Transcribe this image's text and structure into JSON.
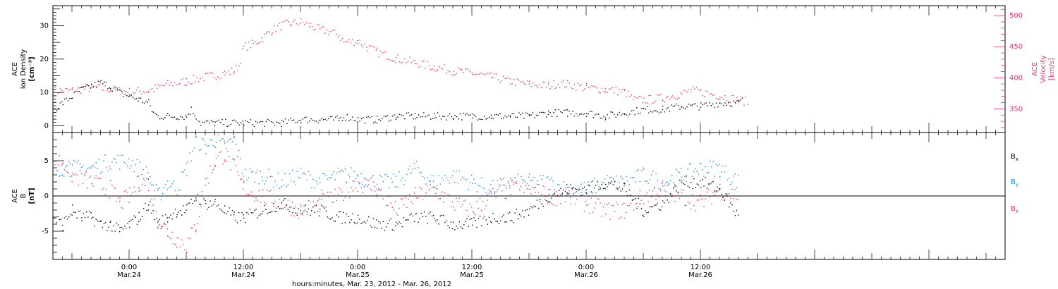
{
  "figure": {
    "xlabel": "hours:minutes, Mar. 23, 2012 - Mar. 26, 2012",
    "xrange_hours": [
      -8,
      92
    ],
    "ticks": [
      {
        "h": 0,
        "time": "0:00",
        "date": "Mar.24"
      },
      {
        "h": 12,
        "time": "12:00",
        "date": "Mar.24"
      },
      {
        "h": 24,
        "time": "0:00",
        "date": "Mar.25"
      },
      {
        "h": 36,
        "time": "12:00",
        "date": "Mar.25"
      },
      {
        "h": 48,
        "time": "0:00",
        "date": "Mar.26"
      },
      {
        "h": 60,
        "time": "12:00",
        "date": "Mar.26"
      }
    ]
  },
  "chart_data": [
    {
      "type": "scatter",
      "panel": "top",
      "ylabel": {
        "line1": "ACE",
        "line2": "Ion Density",
        "line3": "[cm⁻³]"
      },
      "ylabel_right": {
        "line1": "ACE",
        "line2": "Velocity",
        "line3": "[km/s]"
      },
      "ylim": [
        -2,
        36
      ],
      "ylim_right": [
        312,
        516
      ],
      "yticks": [
        0,
        10,
        20,
        30
      ],
      "yticks_right": [
        350,
        400,
        450,
        500
      ],
      "series": [
        {
          "key": "density",
          "axis": "left",
          "color": "#000000",
          "points": [
            [
              -8,
              5
            ],
            [
              -7,
              7
            ],
            [
              -6,
              9
            ],
            [
              -5,
              11
            ],
            [
              -4,
              12
            ],
            [
              -3,
              13
            ],
            [
              -2,
              12
            ],
            [
              -1,
              10
            ],
            [
              0,
              9
            ],
            [
              1,
              8
            ],
            [
              2,
              7
            ],
            [
              2.5,
              4
            ],
            [
              3,
              3
            ],
            [
              4,
              3
            ],
            [
              5,
              3
            ],
            [
              6,
              3
            ],
            [
              6.5,
              5
            ],
            [
              7,
              3
            ],
            [
              7.5,
              1
            ],
            [
              9,
              1
            ],
            [
              12,
              1
            ],
            [
              16,
              1
            ],
            [
              18,
              2
            ],
            [
              20,
              2
            ],
            [
              22,
              2
            ],
            [
              22.5,
              3
            ],
            [
              24,
              2
            ],
            [
              26,
              2
            ],
            [
              28,
              3
            ],
            [
              30,
              3
            ],
            [
              32,
              3
            ],
            [
              34,
              3
            ],
            [
              36,
              3
            ],
            [
              38,
              3
            ],
            [
              40,
              3
            ],
            [
              42,
              3
            ],
            [
              44,
              4
            ],
            [
              46,
              4
            ],
            [
              48,
              4
            ],
            [
              50,
              3
            ],
            [
              52,
              4
            ],
            [
              54,
              5
            ],
            [
              56,
              5
            ],
            [
              58,
              6
            ],
            [
              60,
              6
            ],
            [
              62,
              7
            ],
            [
              64,
              7
            ],
            [
              64.5,
              8
            ]
          ]
        },
        {
          "key": "velocity",
          "axis": "right",
          "color": "#e8336c",
          "points": [
            [
              -8,
              380
            ],
            [
              -6,
              380
            ],
            [
              -4,
              385
            ],
            [
              -2,
              382
            ],
            [
              0,
              378
            ],
            [
              2,
              380
            ],
            [
              3,
              385
            ],
            [
              4,
              390
            ],
            [
              6,
              395
            ],
            [
              8,
              402
            ],
            [
              10,
              408
            ],
            [
              11,
              412
            ],
            [
              11.5,
              420
            ],
            [
              12,
              450
            ],
            [
              13,
              455
            ],
            [
              14,
              465
            ],
            [
              15,
              478
            ],
            [
              16,
              485
            ],
            [
              17,
              488
            ],
            [
              18,
              490
            ],
            [
              19,
              485
            ],
            [
              20,
              478
            ],
            [
              21,
              475
            ],
            [
              22,
              470
            ],
            [
              22.5,
              458
            ],
            [
              24,
              460
            ],
            [
              25,
              450
            ],
            [
              26,
              442
            ],
            [
              28,
              432
            ],
            [
              30,
              425
            ],
            [
              32,
              418
            ],
            [
              34,
              412
            ],
            [
              36,
              408
            ],
            [
              38,
              402
            ],
            [
              40,
              395
            ],
            [
              42,
              390
            ],
            [
              44,
              388
            ],
            [
              45,
              392
            ],
            [
              46,
              390
            ],
            [
              48,
              385
            ],
            [
              50,
              382
            ],
            [
              52,
              378
            ],
            [
              53,
              365
            ],
            [
              54,
              365
            ],
            [
              56,
              368
            ],
            [
              57,
              372
            ],
            [
              58,
              375
            ],
            [
              59,
              380
            ],
            [
              60,
              378
            ],
            [
              62,
              372
            ],
            [
              64,
              365
            ],
            [
              65,
              362
            ]
          ]
        }
      ]
    },
    {
      "type": "scatter",
      "panel": "bottom",
      "ylabel": {
        "line1": "ACE",
        "line2": "B",
        "line3": "[nT]"
      },
      "ylim": [
        -9,
        9
      ],
      "yticks": [
        -5,
        0,
        5
      ],
      "legend": [
        {
          "label": "B",
          "sub": "x",
          "color": "#000000"
        },
        {
          "label": "B",
          "sub": "y",
          "color": "#1f86e0"
        },
        {
          "label": "B",
          "sub": "z",
          "color": "#e8336c"
        }
      ],
      "series": [
        {
          "key": "bx",
          "color": "#000000",
          "points": [
            [
              -8,
              -3
            ],
            [
              -7,
              -4
            ],
            [
              -6,
              -2
            ],
            [
              -5,
              -3
            ],
            [
              -4,
              -3
            ],
            [
              -3,
              -4
            ],
            [
              -2,
              -4
            ],
            [
              -1,
              -5
            ],
            [
              0,
              -4
            ],
            [
              1,
              -3
            ],
            [
              2,
              -1
            ],
            [
              3,
              -4
            ],
            [
              4,
              -3
            ],
            [
              5,
              -2
            ],
            [
              6,
              -2
            ],
            [
              7,
              0
            ],
            [
              8,
              -1
            ],
            [
              9,
              -1
            ],
            [
              10,
              -2
            ],
            [
              11,
              -3
            ],
            [
              12,
              -3
            ],
            [
              14,
              -2
            ],
            [
              16,
              -1
            ],
            [
              18,
              -2
            ],
            [
              20,
              -2
            ],
            [
              22,
              -3
            ],
            [
              24,
              -3
            ],
            [
              26,
              -4
            ],
            [
              28,
              -4
            ],
            [
              30,
              -3
            ],
            [
              32,
              -3
            ],
            [
              34,
              -4
            ],
            [
              36,
              -4
            ],
            [
              38,
              -3
            ],
            [
              40,
              -3
            ],
            [
              42,
              -2
            ],
            [
              44,
              0
            ],
            [
              46,
              1
            ],
            [
              48,
              1
            ],
            [
              50,
              2
            ],
            [
              52,
              1
            ],
            [
              54,
              -2
            ],
            [
              56,
              -1
            ],
            [
              58,
              2
            ],
            [
              60,
              2
            ],
            [
              62,
              1
            ],
            [
              64,
              -3
            ]
          ]
        },
        {
          "key": "by",
          "color": "#1f86e0",
          "points": [
            [
              -8,
              4
            ],
            [
              -6,
              4
            ],
            [
              -4,
              4
            ],
            [
              -2,
              5
            ],
            [
              0,
              5
            ],
            [
              2,
              3
            ],
            [
              3,
              0
            ],
            [
              4,
              2
            ],
            [
              5,
              1
            ],
            [
              6,
              4
            ],
            [
              7,
              8
            ],
            [
              8,
              7
            ],
            [
              9,
              8
            ],
            [
              10,
              7
            ],
            [
              11,
              8
            ],
            [
              12,
              3
            ],
            [
              14,
              3
            ],
            [
              16,
              2
            ],
            [
              18,
              3
            ],
            [
              20,
              2
            ],
            [
              22,
              3
            ],
            [
              24,
              3
            ],
            [
              26,
              2
            ],
            [
              28,
              2
            ],
            [
              30,
              4
            ],
            [
              32,
              2
            ],
            [
              34,
              3
            ],
            [
              36,
              2
            ],
            [
              38,
              1
            ],
            [
              40,
              2
            ],
            [
              42,
              2
            ],
            [
              44,
              2
            ],
            [
              46,
              1
            ],
            [
              48,
              1
            ],
            [
              50,
              2
            ],
            [
              52,
              2
            ],
            [
              54,
              3
            ],
            [
              56,
              2
            ],
            [
              58,
              3
            ],
            [
              60,
              4
            ],
            [
              62,
              4
            ],
            [
              64,
              2
            ]
          ]
        },
        {
          "key": "bz",
          "color": "#e8336c",
          "points": [
            [
              -8,
              5
            ],
            [
              -7,
              5
            ],
            [
              -6,
              3
            ],
            [
              -4,
              2
            ],
            [
              -2,
              1
            ],
            [
              -1,
              -1
            ],
            [
              0,
              0
            ],
            [
              1,
              2
            ],
            [
              2,
              2
            ],
            [
              3,
              -3
            ],
            [
              4,
              -5
            ],
            [
              5,
              -6
            ],
            [
              6,
              -7
            ],
            [
              7,
              -4
            ],
            [
              8,
              2
            ],
            [
              9,
              5
            ],
            [
              10,
              6
            ],
            [
              11,
              4
            ],
            [
              12,
              1
            ],
            [
              14,
              0
            ],
            [
              16,
              -1
            ],
            [
              18,
              -2
            ],
            [
              20,
              -1
            ],
            [
              22,
              0
            ],
            [
              24,
              2
            ],
            [
              26,
              1
            ],
            [
              28,
              -2
            ],
            [
              30,
              0
            ],
            [
              32,
              1
            ],
            [
              34,
              -1
            ],
            [
              36,
              -2
            ],
            [
              38,
              0
            ],
            [
              40,
              1
            ],
            [
              42,
              1
            ],
            [
              44,
              0
            ],
            [
              46,
              0
            ],
            [
              48,
              -1
            ],
            [
              50,
              -2
            ],
            [
              52,
              -2
            ],
            [
              54,
              0
            ],
            [
              56,
              1
            ],
            [
              58,
              0
            ],
            [
              60,
              -1
            ],
            [
              62,
              1
            ],
            [
              64,
              0
            ]
          ]
        }
      ]
    }
  ]
}
